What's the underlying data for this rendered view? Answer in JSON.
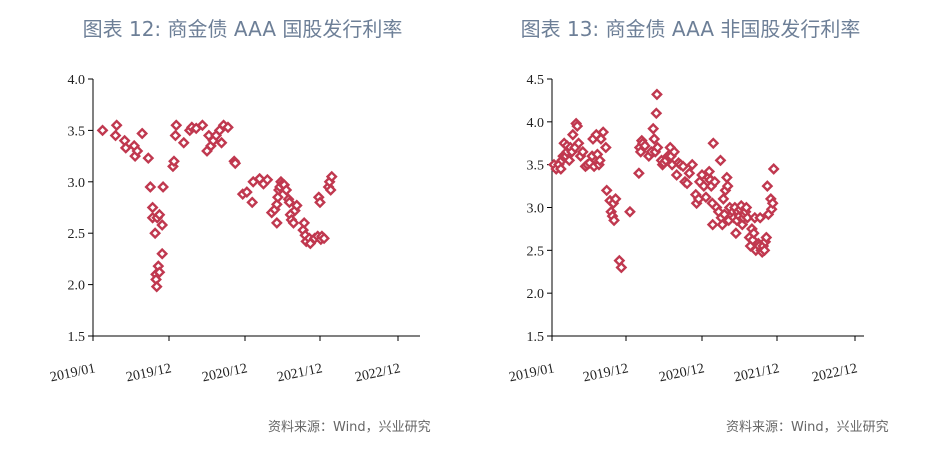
{
  "source_label": "资料来源：Wind，兴业研究",
  "colors": {
    "title": "#6d7f97",
    "marker": "#c0384f",
    "source": "#666666"
  },
  "chart_data": [
    {
      "type": "scatter",
      "title": "图表 12: 商金债 AAA 国股发行利率",
      "marker": "diamond",
      "xlim": [
        "2019/01",
        "2023/01"
      ],
      "xticks": [
        "2019/01",
        "2019/12",
        "2020/12",
        "2021/12",
        "2022/12"
      ],
      "ylim": [
        1.5,
        4.0
      ],
      "yticks": [
        "1.5",
        "2.0",
        "2.5",
        "3.0",
        "3.5",
        "4.0"
      ],
      "grid": false,
      "points": [
        [
          "2019-02-12",
          3.5
        ],
        [
          "2019-04-10",
          3.45
        ],
        [
          "2019-04-15",
          3.55
        ],
        [
          "2019-05-20",
          3.4
        ],
        [
          "2019-05-25",
          3.33
        ],
        [
          "2019-07-01",
          3.35
        ],
        [
          "2019-07-05",
          3.25
        ],
        [
          "2019-07-15",
          3.3
        ],
        [
          "2019-08-05",
          3.47
        ],
        [
          "2019-09-01",
          3.23
        ],
        [
          "2019-09-10",
          2.95
        ],
        [
          "2019-09-20",
          2.75
        ],
        [
          "2019-09-20",
          2.65
        ],
        [
          "2019-10-01",
          2.5
        ],
        [
          "2019-10-10",
          2.65
        ],
        [
          "2019-10-05",
          2.1
        ],
        [
          "2019-10-05",
          2.05
        ],
        [
          "2019-10-08",
          1.98
        ],
        [
          "2019-10-20",
          2.68
        ],
        [
          "2019-10-15",
          2.18
        ],
        [
          "2019-10-20",
          2.12
        ],
        [
          "2019-11-01",
          2.58
        ],
        [
          "2019-11-01",
          2.3
        ],
        [
          "2019-11-05",
          2.95
        ],
        [
          "2019-12-20",
          3.15
        ],
        [
          "2019-12-25",
          3.2
        ],
        [
          "2020-01-01",
          3.45
        ],
        [
          "2020-01-05",
          3.55
        ],
        [
          "2020-02-10",
          3.38
        ],
        [
          "2020-03-10",
          3.5
        ],
        [
          "2020-03-20",
          3.53
        ],
        [
          "2020-04-10",
          3.52
        ],
        [
          "2020-05-10",
          3.55
        ],
        [
          "2020-06-01",
          3.3
        ],
        [
          "2020-06-10",
          3.45
        ],
        [
          "2020-06-20",
          3.35
        ],
        [
          "2020-07-01",
          3.4
        ],
        [
          "2020-07-15",
          3.45
        ],
        [
          "2020-08-01",
          3.5
        ],
        [
          "2020-08-10",
          3.38
        ],
        [
          "2020-08-20",
          3.55
        ],
        [
          "2020-09-10",
          3.53
        ],
        [
          "2020-10-10",
          3.2
        ],
        [
          "2020-10-15",
          3.18
        ],
        [
          "2020-11-20",
          2.88
        ],
        [
          "2020-12-10",
          2.9
        ],
        [
          "2021-01-05",
          2.8
        ],
        [
          "2021-01-10",
          3.0
        ],
        [
          "2021-02-10",
          3.03
        ],
        [
          "2021-03-01",
          2.98
        ],
        [
          "2021-03-20",
          3.02
        ],
        [
          "2021-04-10",
          2.7
        ],
        [
          "2021-04-25",
          2.73
        ],
        [
          "2021-05-05",
          2.78
        ],
        [
          "2021-05-05",
          2.6
        ],
        [
          "2021-05-10",
          2.85
        ],
        [
          "2021-05-15",
          2.92
        ],
        [
          "2021-05-20",
          2.95
        ],
        [
          "2021-05-25",
          3.0
        ],
        [
          "2021-06-01",
          2.98
        ],
        [
          "2021-06-10",
          2.97
        ],
        [
          "2021-06-20",
          2.92
        ],
        [
          "2021-07-01",
          2.83
        ],
        [
          "2021-07-05",
          2.8
        ],
        [
          "2021-07-10",
          2.68
        ],
        [
          "2021-07-15",
          2.63
        ],
        [
          "2021-07-25",
          2.6
        ],
        [
          "2021-08-01",
          2.72
        ],
        [
          "2021-08-10",
          2.77
        ],
        [
          "2021-09-10",
          2.53
        ],
        [
          "2021-09-15",
          2.6
        ],
        [
          "2021-09-20",
          2.48
        ],
        [
          "2021-09-25",
          2.42
        ],
        [
          "2021-10-10",
          2.45
        ],
        [
          "2021-10-15",
          2.4
        ],
        [
          "2021-11-05",
          2.45
        ],
        [
          "2021-11-20",
          2.47
        ],
        [
          "2021-11-25",
          2.85
        ],
        [
          "2021-12-01",
          2.8
        ],
        [
          "2021-12-05",
          2.44
        ],
        [
          "2021-12-10",
          2.47
        ],
        [
          "2021-12-20",
          2.45
        ],
        [
          "2022-01-10",
          2.95
        ],
        [
          "2022-01-15",
          3.0
        ],
        [
          "2022-01-20",
          2.92
        ],
        [
          "2022-01-25",
          3.05
        ]
      ]
    },
    {
      "type": "scatter",
      "title": "图表 13: 商金债 AAA 非国股发行利率",
      "marker": "diamond",
      "xlim": [
        "2019/01",
        "2023/01"
      ],
      "xticks": [
        "2019/01",
        "2019/12",
        "2020/12",
        "2021/12",
        "2022/12"
      ],
      "ylim": [
        1.5,
        4.5
      ],
      "yticks": [
        "1.5",
        "2.0",
        "2.5",
        "3.0",
        "3.5",
        "4.0",
        "4.5"
      ],
      "grid": false,
      "points": [
        [
          "2019-01-10",
          3.5
        ],
        [
          "2019-01-20",
          3.45
        ],
        [
          "2019-02-01",
          3.5
        ],
        [
          "2019-02-10",
          3.45
        ],
        [
          "2019-02-15",
          3.55
        ],
        [
          "2019-02-20",
          3.6
        ],
        [
          "2019-02-25",
          3.75
        ],
        [
          "2019-03-05",
          3.6
        ],
        [
          "2019-03-10",
          3.65
        ],
        [
          "2019-03-10",
          3.72
        ],
        [
          "2019-03-20",
          3.55
        ],
        [
          "2019-03-25",
          3.7
        ],
        [
          "2019-04-01",
          3.65
        ],
        [
          "2019-04-05",
          3.85
        ],
        [
          "2019-04-15",
          3.7
        ],
        [
          "2019-04-20",
          3.98
        ],
        [
          "2019-04-25",
          3.95
        ],
        [
          "2019-05-01",
          3.75
        ],
        [
          "2019-05-10",
          3.6
        ],
        [
          "2019-05-20",
          3.65
        ],
        [
          "2019-06-01",
          3.48
        ],
        [
          "2019-06-10",
          3.5
        ],
        [
          "2019-06-20",
          3.52
        ],
        [
          "2019-07-01",
          3.6
        ],
        [
          "2019-07-05",
          3.8
        ],
        [
          "2019-07-10",
          3.48
        ],
        [
          "2019-07-20",
          3.85
        ],
        [
          "2019-07-25",
          3.62
        ],
        [
          "2019-08-01",
          3.5
        ],
        [
          "2019-08-05",
          3.55
        ],
        [
          "2019-08-10",
          3.8
        ],
        [
          "2019-08-20",
          3.88
        ],
        [
          "2019-09-01",
          3.7
        ],
        [
          "2019-09-05",
          3.2
        ],
        [
          "2019-09-20",
          3.08
        ],
        [
          "2019-09-25",
          2.95
        ],
        [
          "2019-10-01",
          2.9
        ],
        [
          "2019-10-05",
          3.05
        ],
        [
          "2019-10-08",
          2.85
        ],
        [
          "2019-10-15",
          3.1
        ],
        [
          "2019-11-01",
          2.38
        ],
        [
          "2019-11-10",
          2.3
        ],
        [
          "2019-12-20",
          2.95
        ],
        [
          "2020-02-01",
          3.4
        ],
        [
          "2020-02-05",
          3.7
        ],
        [
          "2020-02-10",
          3.65
        ],
        [
          "2020-02-15",
          3.78
        ],
        [
          "2020-02-20",
          3.75
        ],
        [
          "2020-03-01",
          3.72
        ],
        [
          "2020-03-20",
          3.6
        ],
        [
          "2020-04-01",
          3.65
        ],
        [
          "2020-04-10",
          3.92
        ],
        [
          "2020-04-15",
          3.8
        ],
        [
          "2020-04-20",
          3.65
        ],
        [
          "2020-04-25",
          4.1
        ],
        [
          "2020-04-28",
          4.32
        ],
        [
          "2020-05-01",
          3.7
        ],
        [
          "2020-05-20",
          3.55
        ],
        [
          "2020-05-25",
          3.5
        ],
        [
          "2020-06-01",
          3.52
        ],
        [
          "2020-06-10",
          3.55
        ],
        [
          "2020-06-20",
          3.6
        ],
        [
          "2020-07-01",
          3.7
        ],
        [
          "2020-07-05",
          3.6
        ],
        [
          "2020-07-10",
          3.5
        ],
        [
          "2020-07-20",
          3.65
        ],
        [
          "2020-08-01",
          3.38
        ],
        [
          "2020-08-10",
          3.52
        ],
        [
          "2020-08-20",
          3.5
        ],
        [
          "2020-09-01",
          3.48
        ],
        [
          "2020-09-10",
          3.3
        ],
        [
          "2020-09-20",
          3.28
        ],
        [
          "2020-10-01",
          3.4
        ],
        [
          "2020-10-15",
          3.5
        ],
        [
          "2020-11-01",
          3.15
        ],
        [
          "2020-11-05",
          3.05
        ],
        [
          "2020-11-15",
          3.1
        ],
        [
          "2020-11-20",
          3.3
        ],
        [
          "2020-12-01",
          3.38
        ],
        [
          "2020-12-10",
          3.25
        ],
        [
          "2020-12-20",
          3.12
        ],
        [
          "2021-01-01",
          3.35
        ],
        [
          "2021-01-05",
          3.42
        ],
        [
          "2021-01-10",
          3.32
        ],
        [
          "2021-01-15",
          3.25
        ],
        [
          "2021-01-20",
          3.05
        ],
        [
          "2021-01-22",
          2.8
        ],
        [
          "2021-01-25",
          3.75
        ],
        [
          "2021-02-01",
          3.3
        ],
        [
          "2021-02-10",
          3.0
        ],
        [
          "2021-02-20",
          2.95
        ],
        [
          "2021-03-01",
          3.55
        ],
        [
          "2021-03-05",
          2.88
        ],
        [
          "2021-03-10",
          2.8
        ],
        [
          "2021-03-15",
          3.1
        ],
        [
          "2021-03-20",
          2.92
        ],
        [
          "2021-03-25",
          3.2
        ],
        [
          "2021-04-01",
          3.35
        ],
        [
          "2021-04-05",
          3.25
        ],
        [
          "2021-04-10",
          2.85
        ],
        [
          "2021-04-15",
          3.0
        ],
        [
          "2021-05-01",
          2.95
        ],
        [
          "2021-05-05",
          2.88
        ],
        [
          "2021-05-10",
          3.0
        ],
        [
          "2021-05-15",
          2.7
        ],
        [
          "2021-05-20",
          2.85
        ],
        [
          "2021-05-25",
          2.95
        ],
        [
          "2021-06-01",
          2.9
        ],
        [
          "2021-06-05",
          2.98
        ],
        [
          "2021-06-10",
          3.02
        ],
        [
          "2021-06-15",
          2.8
        ],
        [
          "2021-06-20",
          2.88
        ],
        [
          "2021-06-25",
          2.92
        ],
        [
          "2021-07-01",
          2.95
        ],
        [
          "2021-07-05",
          3.0
        ],
        [
          "2021-07-10",
          2.88
        ],
        [
          "2021-07-20",
          2.65
        ],
        [
          "2021-07-25",
          2.55
        ],
        [
          "2021-08-01",
          2.75
        ],
        [
          "2021-08-05",
          2.62
        ],
        [
          "2021-08-10",
          2.7
        ],
        [
          "2021-08-15",
          2.88
        ],
        [
          "2021-08-20",
          2.5
        ],
        [
          "2021-09-01",
          2.58
        ],
        [
          "2021-09-05",
          2.55
        ],
        [
          "2021-09-10",
          2.88
        ],
        [
          "2021-09-15",
          2.5
        ],
        [
          "2021-09-20",
          2.48
        ],
        [
          "2021-09-25",
          2.55
        ],
        [
          "2021-10-01",
          2.5
        ],
        [
          "2021-10-05",
          2.6
        ],
        [
          "2021-10-10",
          2.65
        ],
        [
          "2021-10-15",
          3.25
        ],
        [
          "2021-10-20",
          2.92
        ],
        [
          "2021-11-01",
          3.1
        ],
        [
          "2021-11-05",
          2.98
        ],
        [
          "2021-11-10",
          3.05
        ],
        [
          "2021-11-15",
          3.45
        ]
      ]
    }
  ]
}
